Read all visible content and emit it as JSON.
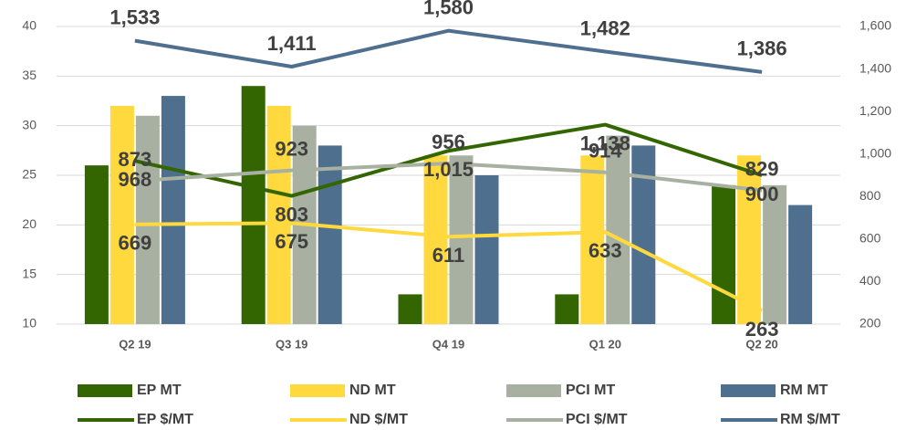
{
  "chart_data": {
    "type": "bar",
    "categories": [
      "Q2 19",
      "Q3 19",
      "Q4 19",
      "Q1 20",
      "Q2 20"
    ],
    "ylim": [
      10,
      40
    ],
    "yticks": [
      10,
      15,
      20,
      25,
      30,
      35,
      40
    ],
    "y2lim": [
      200,
      1600
    ],
    "y2ticks": [
      200,
      400,
      600,
      800,
      {
        "value": 1000,
        "label": "1,000"
      },
      {
        "value": 1200,
        "label": "1,200"
      },
      {
        "value": 1400,
        "label": "1,400"
      },
      {
        "value": 1600,
        "label": "1,600"
      }
    ],
    "grid": true,
    "legend": "bottom",
    "series": [
      {
        "name": "EP MT",
        "type": "bar",
        "color": "#336600",
        "values": [
          26,
          34,
          13,
          13,
          24
        ]
      },
      {
        "name": "ND MT",
        "type": "bar",
        "color": "#ffd93d",
        "values": [
          32,
          32,
          27,
          27,
          27
        ]
      },
      {
        "name": "PCI MT",
        "type": "bar",
        "color": "#a8b0a2",
        "values": [
          31,
          30,
          27,
          29,
          24
        ]
      },
      {
        "name": "RM MT",
        "type": "bar",
        "color": "#4f6f8f",
        "values": [
          33,
          28,
          25,
          28,
          22
        ]
      },
      {
        "name": "EP $/MT",
        "type": "line",
        "axis": "y2",
        "color": "#336600",
        "values": [
          968,
          803,
          1015,
          1138,
          900
        ],
        "value_labels": [
          "968",
          "803",
          "1,015",
          "1,138",
          "900"
        ]
      },
      {
        "name": "ND $/MT",
        "type": "line",
        "axis": "y2",
        "color": "#ffd93d",
        "values": [
          669,
          675,
          611,
          633,
          263
        ],
        "value_labels": [
          "669",
          "675",
          "611",
          "633",
          "263"
        ]
      },
      {
        "name": "PCI $/MT",
        "type": "line",
        "axis": "y2",
        "color": "#a8b0a2",
        "values": [
          873,
          923,
          956,
          914,
          829
        ],
        "value_labels": [
          "873",
          "923",
          "956",
          "914",
          "829"
        ]
      },
      {
        "name": "RM $/MT",
        "type": "line",
        "axis": "y2",
        "color": "#4f6f8f",
        "values": [
          1533,
          1411,
          1580,
          1482,
          1386
        ],
        "value_labels": [
          "1,533",
          "1,411",
          "1,580",
          "1,482",
          "1,386"
        ]
      }
    ]
  }
}
